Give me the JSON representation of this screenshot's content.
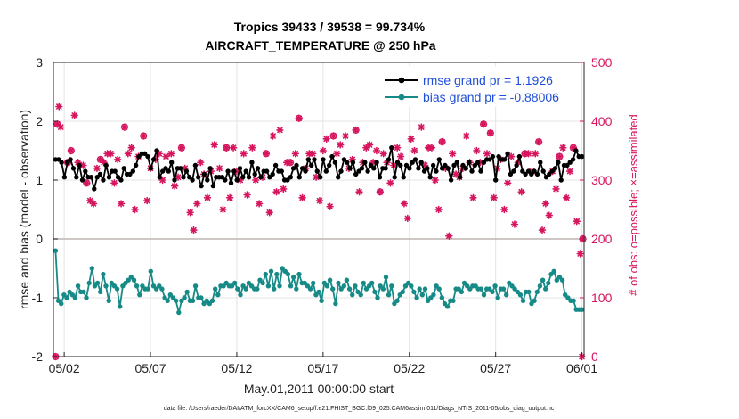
{
  "chart_data": {
    "type": "line",
    "title_line1": "Tropics 39433 / 39538 = 99.734%",
    "title_line2": "AIRCRAFT_TEMPERATURE @ 250 hPa",
    "xlabel": "May.01,2011 00:00:00 start",
    "ylabel_left": "rmse and bias (model - observation)",
    "ylabel_right": "# of obs: o=possible; ×=assimilated",
    "footnote": "data file: /Users/raeder/DAI/ATM_forcXX/CAM6_setup/f.e21.FHIST_BGC.f09_025.CAM6assim.011/Diags_NTrS_2011-05/obs_diag_output.nc",
    "x_ticks": [
      {
        "day": 2,
        "label": "05/02"
      },
      {
        "day": 7,
        "label": "05/07"
      },
      {
        "day": 12,
        "label": "05/12"
      },
      {
        "day": 17,
        "label": "05/17"
      },
      {
        "day": 22,
        "label": "05/22"
      },
      {
        "day": 27,
        "label": "05/27"
      },
      {
        "day": 32,
        "label": "06/01"
      }
    ],
    "xlim": [
      1.375,
      32.125
    ],
    "ylim_left": [
      -2,
      3
    ],
    "yticks_left": [
      "-2",
      "-1",
      "0",
      "1",
      "2",
      "3"
    ],
    "ylim_right": [
      0,
      500
    ],
    "yticks_right": [
      "0",
      "100",
      "200",
      "300",
      "400",
      "500"
    ],
    "grid": true,
    "legend_position": "top-right",
    "colors": {
      "rmse": "#000000",
      "bias": "#168a86",
      "obs": "#d6155e",
      "zero_line": "#bfb3b3",
      "grid": "#e4e4e4",
      "legend_text": "#1f4fd8"
    },
    "series": [
      {
        "name": "rmse grand pr = 1.1926",
        "axis": "left",
        "values": [
          1.35,
          1.35,
          1.3,
          1.05,
          1.3,
          1.35,
          1.2,
          1.05,
          1.25,
          1.0,
          1.15,
          1.05,
          1.05,
          0.85,
          1.05,
          1.1,
          1.0,
          1.25,
          1.05,
          1.15,
          1.15,
          1.05,
          1.0,
          1.2,
          1.1,
          1.1,
          1.15,
          1.25,
          1.4,
          1.45,
          1.45,
          1.4,
          1.2,
          1.35,
          1.5,
          1.05,
          1.15,
          1.2,
          1.15,
          1.3,
          1.0,
          1.2,
          1.2,
          1.05,
          1.15,
          1.05,
          1.0,
          1.25,
          1.05,
          0.9,
          1.1,
          1.0,
          1.2,
          0.9,
          1.05,
          1.05,
          1.05,
          1.0,
          1.15,
          0.95,
          1.15,
          1.0,
          1.2,
          1.05,
          1.15,
          1.05,
          1.3,
          1.1,
          1.2,
          1.05,
          1.15,
          1.15,
          1.05,
          1.1,
          1.25,
          1.15,
          1.15,
          1.0,
          1.0,
          1.05,
          1.2,
          1.25,
          1.05,
          1.2,
          1.15,
          1.35,
          1.25,
          1.35,
          1.15,
          1.05,
          1.35,
          1.15,
          1.25,
          1.4,
          1.3,
          1.05,
          1.15,
          1.35,
          1.3,
          1.2,
          1.3,
          1.1,
          1.15,
          1.2,
          1.3,
          1.15,
          1.25,
          1.2,
          1.3,
          1.05,
          1.2,
          1.2,
          1.35,
          1.55,
          1.05,
          1.3,
          1.25,
          1.05,
          1.25,
          1.2,
          1.3,
          1.35,
          1.2,
          1.3,
          1.15,
          1.2,
          1.05,
          1.25,
          1.15,
          1.35,
          1.2,
          1.25,
          1.2,
          1.0,
          1.25,
          1.3,
          1.05,
          1.25,
          1.2,
          1.3,
          1.15,
          1.25,
          1.3,
          1.15,
          1.3,
          1.35,
          1.35,
          1.4,
          1.0,
          1.4,
          1.35,
          1.35,
          1.45,
          1.1,
          1.15,
          1.25,
          1.4,
          1.15,
          1.1,
          1.15,
          1.1,
          1.15,
          1.1,
          1.3,
          1.15,
          1.05,
          1.1,
          1.15,
          1.2,
          1.3,
          1.0,
          1.25,
          1.25,
          1.3,
          1.35,
          1.5,
          1.4,
          1.4
        ]
      },
      {
        "name": "bias grand pr = -0.88006",
        "axis": "left",
        "values": [
          -0.2,
          -1.05,
          -1.1,
          -0.95,
          -1.0,
          -0.9,
          -0.95,
          -1.0,
          -0.8,
          -0.9,
          -0.9,
          -1.0,
          -0.75,
          -0.5,
          -0.8,
          -0.75,
          -0.9,
          -0.6,
          -0.8,
          -1.05,
          -0.75,
          -0.8,
          -0.85,
          -1.15,
          -0.8,
          -0.75,
          -0.7,
          -0.65,
          -0.7,
          -0.8,
          -0.95,
          -0.8,
          -0.85,
          -0.85,
          -0.55,
          -0.8,
          -0.85,
          -0.8,
          -0.85,
          -1.0,
          -1.05,
          -0.95,
          -1.0,
          -1.05,
          -1.25,
          -1.05,
          -1.0,
          -0.9,
          -1.05,
          -1.05,
          -0.8,
          -1.0,
          -1.0,
          -1.1,
          -1.05,
          -1.1,
          -1.05,
          -0.85,
          -0.95,
          -0.8,
          -0.8,
          -0.75,
          -0.8,
          -0.8,
          -0.75,
          -0.85,
          -0.95,
          -0.8,
          -0.85,
          -0.75,
          -0.8,
          -0.85,
          -0.85,
          -0.7,
          -0.75,
          -0.6,
          -0.8,
          -0.55,
          -0.85,
          -0.6,
          -0.8,
          -0.5,
          -0.55,
          -0.6,
          -0.8,
          -0.65,
          -0.85,
          -0.6,
          -0.75,
          -0.75,
          -0.8,
          -0.85,
          -0.75,
          -0.95,
          -0.9,
          -1.05,
          -0.75,
          -0.8,
          -0.7,
          -0.85,
          -1.1,
          -0.75,
          -0.85,
          -0.8,
          -0.7,
          -0.85,
          -0.95,
          -0.8,
          -0.9,
          -0.95,
          -0.75,
          -0.85,
          -0.8,
          -0.75,
          -0.9,
          -1.0,
          -0.8,
          -0.85,
          -0.65,
          -0.95,
          -0.8,
          -1.1,
          -1.05,
          -0.95,
          -0.9,
          -0.8,
          -0.75,
          -0.8,
          -0.9,
          -1.0,
          -0.85,
          -0.95,
          -0.85,
          -1.05,
          -1.0,
          -0.95,
          -0.8,
          -0.85,
          -1.0,
          -1.1,
          -1.15,
          -1.05,
          -1.05,
          -0.85,
          -0.85,
          -0.9,
          -0.75,
          -0.8,
          -0.85,
          -0.8,
          -0.8,
          -0.85,
          -0.85,
          -0.95,
          -0.85,
          -0.85,
          -0.9,
          -0.8,
          -1.0,
          -0.85,
          -0.85,
          -0.95,
          -0.75,
          -0.8,
          -0.85,
          -0.9,
          -0.95,
          -1.05,
          -0.9,
          -0.9,
          -1.1,
          -1.05,
          -0.9,
          -0.8,
          -0.7,
          -0.85,
          -0.75,
          -0.6,
          -0.55,
          -0.7,
          -0.65,
          -0.7,
          -0.95,
          -1.0,
          -1.05,
          -1.05,
          -1.2,
          -1.2,
          -1.2
        ]
      }
    ],
    "obs_points_assimilated": [
      [
        1.5,
        0
      ],
      [
        1.6,
        395
      ],
      [
        1.7,
        425
      ],
      [
        1.8,
        390
      ],
      [
        2.2,
        330
      ],
      [
        2.4,
        350
      ],
      [
        2.6,
        410
      ],
      [
        2.8,
        330
      ],
      [
        3.1,
        325
      ],
      [
        3.3,
        295
      ],
      [
        3.5,
        265
      ],
      [
        3.7,
        260
      ],
      [
        3.9,
        320
      ],
      [
        4.1,
        335
      ],
      [
        4.3,
        330
      ],
      [
        4.5,
        345
      ],
      [
        4.7,
        345
      ],
      [
        4.9,
        295
      ],
      [
        5.1,
        335
      ],
      [
        5.3,
        260
      ],
      [
        5.5,
        390
      ],
      [
        5.7,
        345
      ],
      [
        5.9,
        355
      ],
      [
        6.1,
        250
      ],
      [
        6.3,
        340
      ],
      [
        6.6,
        375
      ],
      [
        6.8,
        265
      ],
      [
        7.0,
        320
      ],
      [
        7.3,
        335
      ],
      [
        7.5,
        345
      ],
      [
        7.7,
        300
      ],
      [
        7.9,
        340
      ],
      [
        8.2,
        345
      ],
      [
        8.4,
        290
      ],
      [
        8.6,
        305
      ],
      [
        8.8,
        355
      ],
      [
        9.0,
        320
      ],
      [
        9.3,
        245
      ],
      [
        9.5,
        215
      ],
      [
        9.7,
        260
      ],
      [
        9.9,
        330
      ],
      [
        10.1,
        310
      ],
      [
        10.3,
        270
      ],
      [
        10.5,
        315
      ],
      [
        10.7,
        360
      ],
      [
        11.0,
        320
      ],
      [
        11.2,
        250
      ],
      [
        11.4,
        355
      ],
      [
        11.6,
        270
      ],
      [
        11.8,
        355
      ],
      [
        12.0,
        315
      ],
      [
        12.2,
        300
      ],
      [
        12.4,
        345
      ],
      [
        12.6,
        275
      ],
      [
        12.9,
        355
      ],
      [
        13.1,
        300
      ],
      [
        13.3,
        260
      ],
      [
        13.5,
        305
      ],
      [
        13.7,
        345
      ],
      [
        13.9,
        245
      ],
      [
        14.1,
        375
      ],
      [
        14.3,
        280
      ],
      [
        14.5,
        385
      ],
      [
        14.7,
        285
      ],
      [
        14.9,
        330
      ],
      [
        15.1,
        330
      ],
      [
        15.4,
        345
      ],
      [
        15.6,
        405
      ],
      [
        15.8,
        270
      ],
      [
        16.0,
        320
      ],
      [
        16.2,
        345
      ],
      [
        16.4,
        345
      ],
      [
        16.6,
        305
      ],
      [
        16.8,
        265
      ],
      [
        17.0,
        350
      ],
      [
        17.2,
        370
      ],
      [
        17.4,
        255
      ],
      [
        17.6,
        375
      ],
      [
        17.8,
        345
      ],
      [
        18.0,
        360
      ],
      [
        18.3,
        375
      ],
      [
        18.5,
        320
      ],
      [
        18.7,
        335
      ],
      [
        18.9,
        385
      ],
      [
        19.1,
        280
      ],
      [
        19.3,
        330
      ],
      [
        19.5,
        355
      ],
      [
        19.7,
        360
      ],
      [
        19.9,
        330
      ],
      [
        20.1,
        350
      ],
      [
        20.3,
        280
      ],
      [
        20.5,
        345
      ],
      [
        20.7,
        330
      ],
      [
        20.9,
        295
      ],
      [
        21.1,
        325
      ],
      [
        21.3,
        355
      ],
      [
        21.5,
        340
      ],
      [
        21.7,
        260
      ],
      [
        21.9,
        235
      ],
      [
        22.1,
        370
      ],
      [
        22.3,
        350
      ],
      [
        22.5,
        475
      ],
      [
        22.7,
        390
      ],
      [
        22.9,
        325
      ],
      [
        23.1,
        355
      ],
      [
        23.3,
        355
      ],
      [
        23.5,
        300
      ],
      [
        23.7,
        250
      ],
      [
        23.9,
        365
      ],
      [
        24.1,
        320
      ],
      [
        24.3,
        205
      ],
      [
        24.5,
        345
      ],
      [
        24.7,
        310
      ],
      [
        24.9,
        305
      ],
      [
        25.1,
        320
      ],
      [
        25.3,
        375
      ],
      [
        25.5,
        330
      ],
      [
        25.7,
        270
      ],
      [
        25.9,
        350
      ],
      [
        26.1,
        330
      ],
      [
        26.3,
        395
      ],
      [
        26.5,
        345
      ],
      [
        26.7,
        380
      ],
      [
        26.9,
        270
      ],
      [
        27.1,
        320
      ],
      [
        27.3,
        335
      ],
      [
        27.5,
        250
      ],
      [
        27.7,
        295
      ],
      [
        27.9,
        340
      ],
      [
        28.1,
        225
      ],
      [
        28.3,
        330
      ],
      [
        28.5,
        280
      ],
      [
        28.7,
        345
      ],
      [
        28.9,
        345
      ],
      [
        29.1,
        315
      ],
      [
        29.3,
        345
      ],
      [
        29.5,
        365
      ],
      [
        29.7,
        215
      ],
      [
        29.9,
        260
      ],
      [
        30.1,
        240
      ],
      [
        30.3,
        315
      ],
      [
        30.5,
        285
      ],
      [
        30.7,
        340
      ],
      [
        30.9,
        355
      ],
      [
        31.1,
        270
      ],
      [
        31.3,
        315
      ],
      [
        31.5,
        355
      ],
      [
        31.7,
        230
      ],
      [
        31.9,
        175
      ],
      [
        32.0,
        0
      ],
      [
        32.05,
        200
      ]
    ],
    "obs_points_possible": [
      [
        1.5,
        0
      ],
      [
        1.6,
        395
      ],
      [
        2.2,
        330
      ],
      [
        2.4,
        350
      ],
      [
        3.3,
        295
      ],
      [
        4.1,
        335
      ],
      [
        5.5,
        390
      ],
      [
        6.6,
        375
      ],
      [
        8.8,
        355
      ],
      [
        11.4,
        355
      ],
      [
        13.7,
        345
      ],
      [
        15.1,
        330
      ],
      [
        15.6,
        405
      ],
      [
        17.6,
        375
      ],
      [
        18.9,
        385
      ],
      [
        20.3,
        280
      ],
      [
        22.5,
        475
      ],
      [
        23.9,
        365
      ],
      [
        26.3,
        395
      ],
      [
        26.7,
        380
      ],
      [
        28.7,
        345
      ],
      [
        29.5,
        365
      ],
      [
        30.7,
        340
      ],
      [
        31.5,
        355
      ],
      [
        32.05,
        200
      ]
    ]
  }
}
